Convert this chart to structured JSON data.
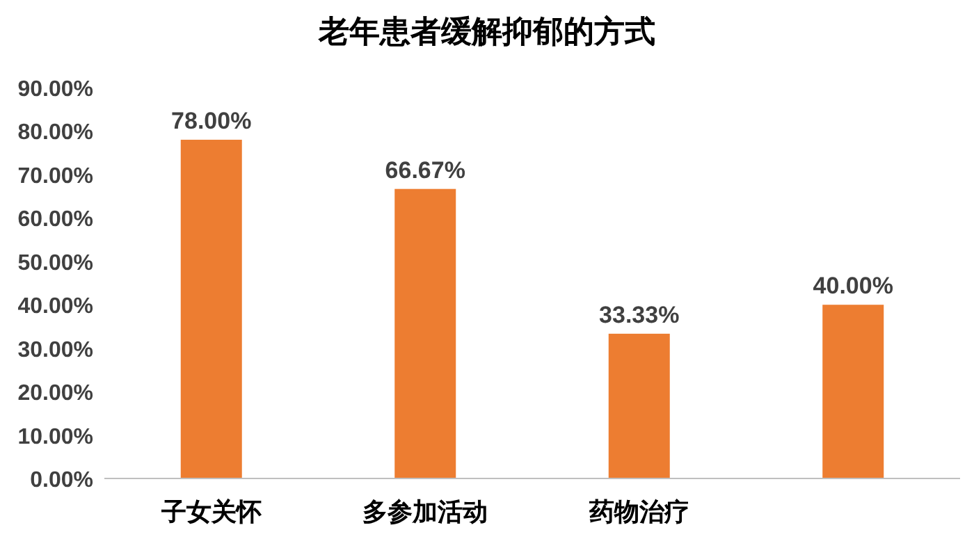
{
  "chart_data": {
    "type": "bar",
    "title": "老年患者缓解抑郁的方式",
    "categories": [
      "子女关怀",
      "多参加活动",
      "药物治疗",
      null
    ],
    "values": [
      78,
      66.67,
      33.33,
      40
    ],
    "value_labels": [
      "78.00%",
      "66.67%",
      "33.33%",
      "40.00%"
    ],
    "color": "#ed7d31",
    "ylim": [
      0,
      90
    ],
    "yticks": [
      {
        "value": 0,
        "label": "0.00%"
      },
      {
        "value": 10,
        "label": "10.00%"
      },
      {
        "value": 20,
        "label": "20.00%"
      },
      {
        "value": 30,
        "label": "30.00%"
      },
      {
        "value": 40,
        "label": "40.00%"
      },
      {
        "value": 50,
        "label": "50.00%"
      },
      {
        "value": 60,
        "label": "60.00%"
      },
      {
        "value": 70,
        "label": "70.00%"
      },
      {
        "value": 80,
        "label": "80.00%"
      },
      {
        "value": 90,
        "label": "90.00%"
      }
    ]
  }
}
